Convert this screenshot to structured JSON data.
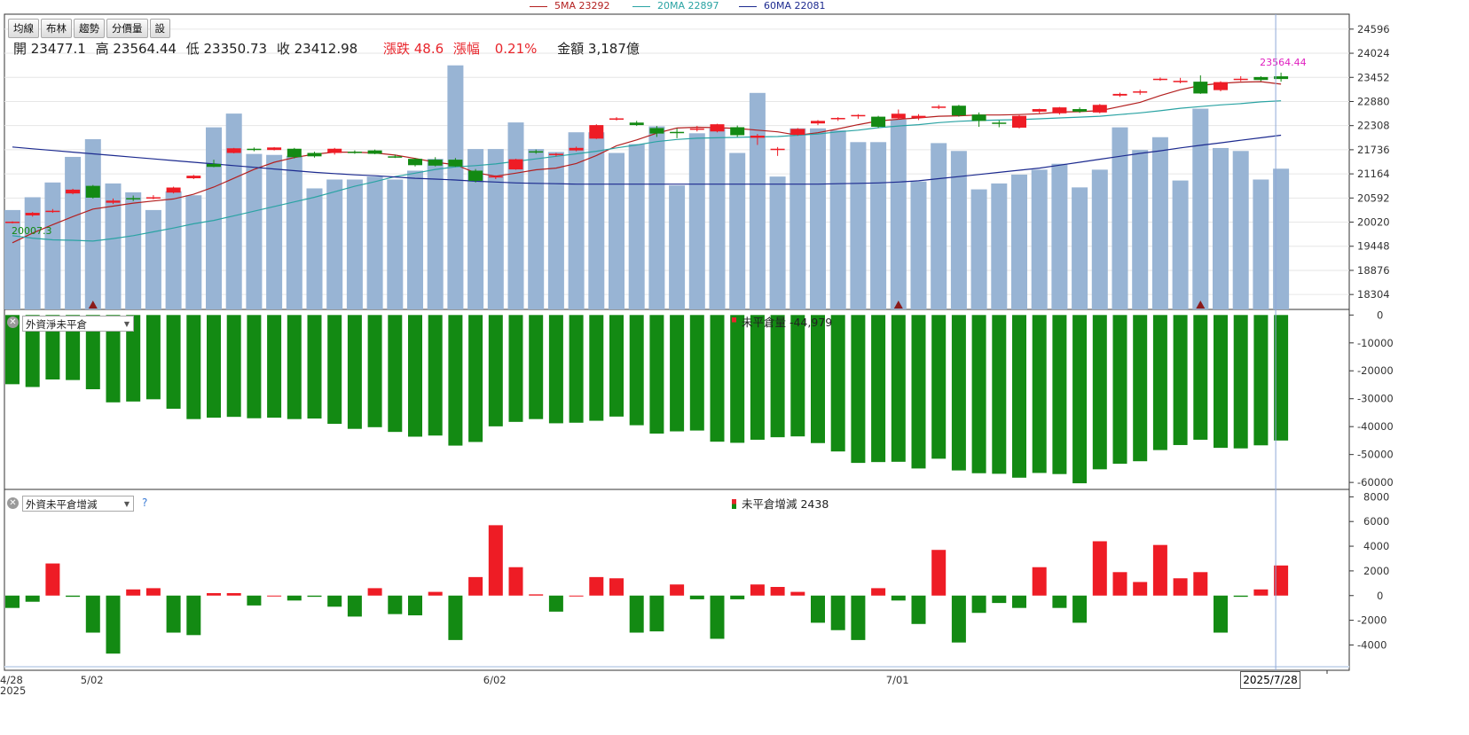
{
  "legend": {
    "ma5": {
      "label": "5MA 23292",
      "color": "#b31f1f"
    },
    "ma20": {
      "label": "20MA 22897",
      "color": "#2aa3a3"
    },
    "ma60": {
      "label": "60MA 22081",
      "color": "#1c2a8f"
    }
  },
  "toolbar": [
    "均線",
    "布林",
    "趨勢",
    "分價量",
    "設"
  ],
  "quote": {
    "open": "開 23477.1",
    "high": "高 23564.44",
    "low": "低 23350.73",
    "close": "收 23412.98",
    "change": "漲跌 48.6",
    "pct_label": "漲幅",
    "pct": "0.21%",
    "amount": "金額 3,187億"
  },
  "colors": {
    "up": "#ee1c25",
    "down": "#138a13",
    "volume": "#98b4d4",
    "marker": "#8b1a1a",
    "cursor": "#8fa8d8"
  },
  "panel2": {
    "selector": "外資淨未平倉",
    "title": "未平倉量 -44,979"
  },
  "panel3": {
    "selector": "外資未平倉增減",
    "help": "?",
    "title": "未平倉增減 2438"
  },
  "crosshair_date": "2025/7/28",
  "chart_data": [
    {
      "type": "candlestick",
      "title": "",
      "y_ticks": [
        18304,
        18876,
        19448,
        20020,
        20592,
        21164,
        21736,
        22308,
        22880,
        23452,
        24024,
        24596
      ],
      "ylim": [
        17950,
        24950
      ],
      "x_ticks": [
        {
          "label": "4/28",
          "index": 0
        },
        {
          "label": "5/02",
          "index": 4
        },
        {
          "label": "6/02",
          "index": 24
        },
        {
          "label": "7/01",
          "index": 44
        }
      ],
      "x_year_label": "2025",
      "annotations": [
        {
          "text": "20007.3",
          "index": 0,
          "value": 20007.3,
          "color": "#138a13"
        },
        {
          "text": "23564.44",
          "index": 63,
          "value": 23564.44,
          "color": "#e020c0"
        }
      ],
      "markers_at": [
        4,
        44,
        59
      ],
      "candles": [
        {
          "o": 20000,
          "h": 20040,
          "l": 19990,
          "c": 20030
        },
        {
          "o": 20180,
          "h": 20260,
          "l": 20150,
          "c": 20240
        },
        {
          "o": 20280,
          "h": 20330,
          "l": 20240,
          "c": 20290
        },
        {
          "o": 20700,
          "h": 20810,
          "l": 20680,
          "c": 20790
        },
        {
          "o": 20880,
          "h": 20900,
          "l": 20580,
          "c": 20600
        },
        {
          "o": 20480,
          "h": 20580,
          "l": 20450,
          "c": 20530
        },
        {
          "o": 20590,
          "h": 20650,
          "l": 20520,
          "c": 20560
        },
        {
          "o": 20600,
          "h": 20660,
          "l": 20560,
          "c": 20610
        },
        {
          "o": 20720,
          "h": 20860,
          "l": 20700,
          "c": 20840
        },
        {
          "o": 21060,
          "h": 21140,
          "l": 21040,
          "c": 21120
        },
        {
          "o": 21400,
          "h": 21500,
          "l": 21320,
          "c": 21330
        },
        {
          "o": 21660,
          "h": 21780,
          "l": 21650,
          "c": 21770
        },
        {
          "o": 21760,
          "h": 21790,
          "l": 21700,
          "c": 21730
        },
        {
          "o": 21730,
          "h": 21800,
          "l": 21720,
          "c": 21790
        },
        {
          "o": 21760,
          "h": 21780,
          "l": 21530,
          "c": 21560
        },
        {
          "o": 21660,
          "h": 21690,
          "l": 21550,
          "c": 21580
        },
        {
          "o": 21660,
          "h": 21780,
          "l": 21620,
          "c": 21760
        },
        {
          "o": 21690,
          "h": 21720,
          "l": 21640,
          "c": 21660
        },
        {
          "o": 21720,
          "h": 21740,
          "l": 21630,
          "c": 21640
        },
        {
          "o": 21580,
          "h": 21620,
          "l": 21540,
          "c": 21560
        },
        {
          "o": 21520,
          "h": 21540,
          "l": 21340,
          "c": 21370
        },
        {
          "o": 21500,
          "h": 21560,
          "l": 21340,
          "c": 21360
        },
        {
          "o": 21500,
          "h": 21540,
          "l": 21330,
          "c": 21340
        },
        {
          "o": 21240,
          "h": 21280,
          "l": 20960,
          "c": 21000
        },
        {
          "o": 21080,
          "h": 21130,
          "l": 21040,
          "c": 21110
        },
        {
          "o": 21270,
          "h": 21520,
          "l": 21260,
          "c": 21510
        },
        {
          "o": 21700,
          "h": 21740,
          "l": 21640,
          "c": 21680
        },
        {
          "o": 21620,
          "h": 21660,
          "l": 21580,
          "c": 21640
        },
        {
          "o": 21720,
          "h": 21810,
          "l": 21700,
          "c": 21780
        },
        {
          "o": 22000,
          "h": 22340,
          "l": 21990,
          "c": 22320
        },
        {
          "o": 22450,
          "h": 22510,
          "l": 22430,
          "c": 22480
        },
        {
          "o": 22380,
          "h": 22420,
          "l": 22300,
          "c": 22320
        },
        {
          "o": 22250,
          "h": 22300,
          "l": 22040,
          "c": 22120
        },
        {
          "o": 22160,
          "h": 22240,
          "l": 22010,
          "c": 22140
        },
        {
          "o": 22220,
          "h": 22300,
          "l": 22170,
          "c": 22240
        },
        {
          "o": 22170,
          "h": 22350,
          "l": 22150,
          "c": 22340
        },
        {
          "o": 22270,
          "h": 22310,
          "l": 22040,
          "c": 22080
        },
        {
          "o": 22020,
          "h": 22110,
          "l": 21850,
          "c": 22070
        },
        {
          "o": 21750,
          "h": 21800,
          "l": 21590,
          "c": 21760
        },
        {
          "o": 22090,
          "h": 22250,
          "l": 22070,
          "c": 22230
        },
        {
          "o": 22360,
          "h": 22440,
          "l": 22320,
          "c": 22420
        },
        {
          "o": 22460,
          "h": 22510,
          "l": 22420,
          "c": 22490
        },
        {
          "o": 22530,
          "h": 22580,
          "l": 22470,
          "c": 22560
        },
        {
          "o": 22520,
          "h": 22540,
          "l": 22250,
          "c": 22280
        },
        {
          "o": 22480,
          "h": 22690,
          "l": 22450,
          "c": 22590
        },
        {
          "o": 22490,
          "h": 22580,
          "l": 22440,
          "c": 22540
        },
        {
          "o": 22740,
          "h": 22800,
          "l": 22700,
          "c": 22760
        },
        {
          "o": 22780,
          "h": 22800,
          "l": 22520,
          "c": 22550
        },
        {
          "o": 22570,
          "h": 22620,
          "l": 22280,
          "c": 22420
        },
        {
          "o": 22380,
          "h": 22430,
          "l": 22270,
          "c": 22360
        },
        {
          "o": 22260,
          "h": 22560,
          "l": 22240,
          "c": 22540
        },
        {
          "o": 22640,
          "h": 22710,
          "l": 22590,
          "c": 22700
        },
        {
          "o": 22600,
          "h": 22750,
          "l": 22570,
          "c": 22740
        },
        {
          "o": 22700,
          "h": 22740,
          "l": 22610,
          "c": 22640
        },
        {
          "o": 22620,
          "h": 22820,
          "l": 22600,
          "c": 22800
        },
        {
          "o": 23020,
          "h": 23090,
          "l": 22990,
          "c": 23060
        },
        {
          "o": 23100,
          "h": 23160,
          "l": 23040,
          "c": 23120
        },
        {
          "o": 23400,
          "h": 23450,
          "l": 23370,
          "c": 23420
        },
        {
          "o": 23350,
          "h": 23440,
          "l": 23310,
          "c": 23370
        },
        {
          "o": 23350,
          "h": 23500,
          "l": 23060,
          "c": 23070
        },
        {
          "o": 23150,
          "h": 23360,
          "l": 23120,
          "c": 23340
        },
        {
          "o": 23390,
          "h": 23480,
          "l": 23360,
          "c": 23420
        },
        {
          "o": 23460,
          "h": 23480,
          "l": 23360,
          "c": 23390
        },
        {
          "o": 23477.1,
          "h": 23564.44,
          "l": 23350.73,
          "c": 23412.98
        }
      ],
      "series": [
        {
          "name": "5MA",
          "color": "#b31f1f",
          "values": [
            19530,
            19760,
            19960,
            20150,
            20330,
            20400,
            20470,
            20520,
            20570,
            20680,
            20850,
            21060,
            21270,
            21440,
            21550,
            21630,
            21680,
            21680,
            21660,
            21610,
            21530,
            21440,
            21380,
            21190,
            21110,
            21180,
            21260,
            21300,
            21410,
            21600,
            21830,
            21970,
            22130,
            22250,
            22270,
            22260,
            22240,
            22200,
            22160,
            22080,
            22140,
            22230,
            22330,
            22420,
            22460,
            22490,
            22530,
            22540,
            22560,
            22560,
            22570,
            22590,
            22630,
            22640,
            22660,
            22760,
            22860,
            23020,
            23160,
            23260,
            23310,
            23340,
            23350,
            23292
          ]
        },
        {
          "name": "20MA",
          "color": "#2aa3a3",
          "values": [
            19700,
            19640,
            19600,
            19590,
            19570,
            19630,
            19700,
            19790,
            19880,
            19980,
            20060,
            20170,
            20280,
            20390,
            20500,
            20610,
            20740,
            20870,
            20980,
            21100,
            21180,
            21270,
            21330,
            21360,
            21400,
            21460,
            21520,
            21580,
            21640,
            21700,
            21780,
            21850,
            21930,
            21980,
            22010,
            22020,
            22030,
            22040,
            22050,
            22080,
            22110,
            22160,
            22200,
            22260,
            22300,
            22330,
            22380,
            22410,
            22430,
            22440,
            22450,
            22470,
            22490,
            22510,
            22530,
            22570,
            22610,
            22660,
            22720,
            22760,
            22800,
            22830,
            22870,
            22897
          ]
        },
        {
          "name": "60MA",
          "color": "#1c2a8f",
          "values": [
            21800,
            21760,
            21720,
            21680,
            21640,
            21600,
            21560,
            21520,
            21480,
            21440,
            21400,
            21360,
            21320,
            21280,
            21240,
            21200,
            21170,
            21140,
            21120,
            21090,
            21060,
            21040,
            21020,
            20990,
            20970,
            20950,
            20940,
            20930,
            20920,
            20920,
            20920,
            20920,
            20920,
            20920,
            20920,
            20920,
            20920,
            20920,
            20920,
            20920,
            20920,
            20930,
            20940,
            20950,
            20970,
            21000,
            21050,
            21100,
            21150,
            21200,
            21250,
            21300,
            21370,
            21440,
            21510,
            21580,
            21650,
            21710,
            21780,
            21840,
            21900,
            21960,
            22020,
            22081
          ]
        }
      ],
      "volume": {
        "ylim": [
          0,
          3000
        ],
        "values": [
          1010,
          1140,
          1290,
          1550,
          1730,
          1280,
          1190,
          1010,
          1200,
          1160,
          1850,
          1990,
          1580,
          1570,
          1560,
          1230,
          1320,
          1320,
          1350,
          1320,
          1410,
          1530,
          2480,
          1630,
          1630,
          1900,
          1630,
          1600,
          1800,
          1800,
          1590,
          1680,
          1860,
          1260,
          1790,
          1840,
          1590,
          2200,
          1350,
          1840,
          1840,
          1820,
          1700,
          1700,
          1930,
          1300,
          1690,
          1610,
          1220,
          1280,
          1370,
          1420,
          1480,
          1240,
          1420,
          1850,
          1620,
          1750,
          1310,
          2040,
          1640,
          1610,
          1320,
          1430
        ]
      },
      "markers_shape": "triangle-up"
    },
    {
      "type": "bar",
      "title": "未平倉量 -44,979",
      "y_ticks": [
        0,
        -10000,
        -20000,
        -30000,
        -40000,
        -50000,
        -60000
      ],
      "ylim": [
        -62500,
        2000
      ],
      "values": [
        -24800,
        -25800,
        -23100,
        -23300,
        -26600,
        -31300,
        -31000,
        -30200,
        -33600,
        -37300,
        -36800,
        -36500,
        -37000,
        -36800,
        -37300,
        -37100,
        -39000,
        -40800,
        -40200,
        -41900,
        -43600,
        -43200,
        -46800,
        -45500,
        -39900,
        -38300,
        -37300,
        -38800,
        -38600,
        -37900,
        -36400,
        -39500,
        -42500,
        -41700,
        -41400,
        -45400,
        -45800,
        -44700,
        -43800,
        -43500,
        -45900,
        -48900,
        -53000,
        -52700,
        -52600,
        -55000,
        -51500,
        -55700,
        -56700,
        -56900,
        -58300,
        -56600,
        -57000,
        -60300,
        -55300,
        -53300,
        -52400,
        -48400,
        -46600,
        -44700,
        -47600,
        -47800,
        -46700,
        -44979
      ],
      "color": "#138a13"
    },
    {
      "type": "bar",
      "title": "未平倉增減 2438",
      "y_ticks": [
        8000,
        6000,
        4000,
        2000,
        0,
        -2000,
        -4000
      ],
      "ylim": [
        -6050,
        8600
      ],
      "values": [
        -1000,
        -500,
        2600,
        -100,
        -3000,
        -4700,
        500,
        600,
        -3000,
        -3200,
        200,
        200,
        -800,
        0,
        -400,
        -100,
        -900,
        -1700,
        600,
        -1500,
        -1600,
        300,
        -3600,
        1500,
        5700,
        2300,
        100,
        -1300,
        0,
        1500,
        1400,
        -3000,
        -2900,
        900,
        -300,
        -3500,
        -300,
        900,
        700,
        300,
        -2200,
        -2800,
        -3600,
        600,
        -400,
        -2300,
        3700,
        -3800,
        -1400,
        -600,
        -1000,
        2300,
        -1000,
        -2200,
        4400,
        1900,
        1100,
        4100,
        1400,
        1900,
        -3000,
        -100,
        500,
        2438
      ],
      "up_color": "#ee1c25",
      "down_color": "#138a13"
    }
  ]
}
